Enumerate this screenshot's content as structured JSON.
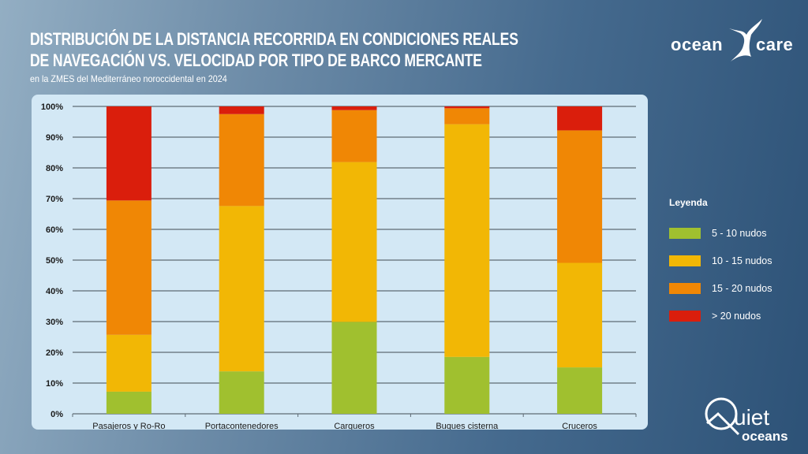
{
  "header": {
    "title_line1": "DISTRIBUCIÓN DE LA DISTANCIA RECORRIDA EN CONDICIONES REALES",
    "title_line2": "DE NAVEGACIÓN VS. VELOCIDAD POR TIPO DE BARCO MERCANTE",
    "subtitle": "en la ZMES del Mediterráneo noroccidental en 2024"
  },
  "logos": {
    "oceancare": {
      "left": "ocean",
      "right": "care"
    },
    "quietoceans": {
      "top": "uiet",
      "bottom": "oceans"
    }
  },
  "chart_data": {
    "type": "bar",
    "stacked": true,
    "title": "DISTRIBUCIÓN DE LA DISTANCIA RECORRIDA EN CONDICIONES REALES DE NAVEGACIÓN VS. VELOCIDAD POR TIPO DE BARCO MERCANTE",
    "subtitle": "en la ZMES del Mediterráneo noroccidental en 2024",
    "categories": [
      "Pasajeros y Ro-Ro",
      "Portacontenedores",
      "Cargueros",
      "Buques cisterna",
      "Cruceros"
    ],
    "ylim": [
      0,
      100
    ],
    "yticks": [
      "0%",
      "10%",
      "20%",
      "30%",
      "40%",
      "50%",
      "60%",
      "70%",
      "80%",
      "90%",
      "100%"
    ],
    "grid": true,
    "legend_title": "Leyenda",
    "legend_position": "right",
    "series": [
      {
        "name": "5 - 10 nudos",
        "color": "#a0c02f",
        "values": [
          7.2,
          13.8,
          29.9,
          18.5,
          15.1
        ]
      },
      {
        "name": "10 - 15 nudos",
        "color": "#f2b705",
        "values": [
          18.5,
          53.8,
          52.0,
          75.7,
          34.0
        ]
      },
      {
        "name": "15 - 20 nudos",
        "color": "#f08705",
        "values": [
          43.7,
          29.9,
          16.9,
          5.2,
          43.1
        ]
      },
      {
        "name": "> 20 nudos",
        "color": "#da1e0c",
        "values": [
          30.6,
          2.5,
          1.2,
          0.6,
          7.8
        ]
      }
    ]
  }
}
